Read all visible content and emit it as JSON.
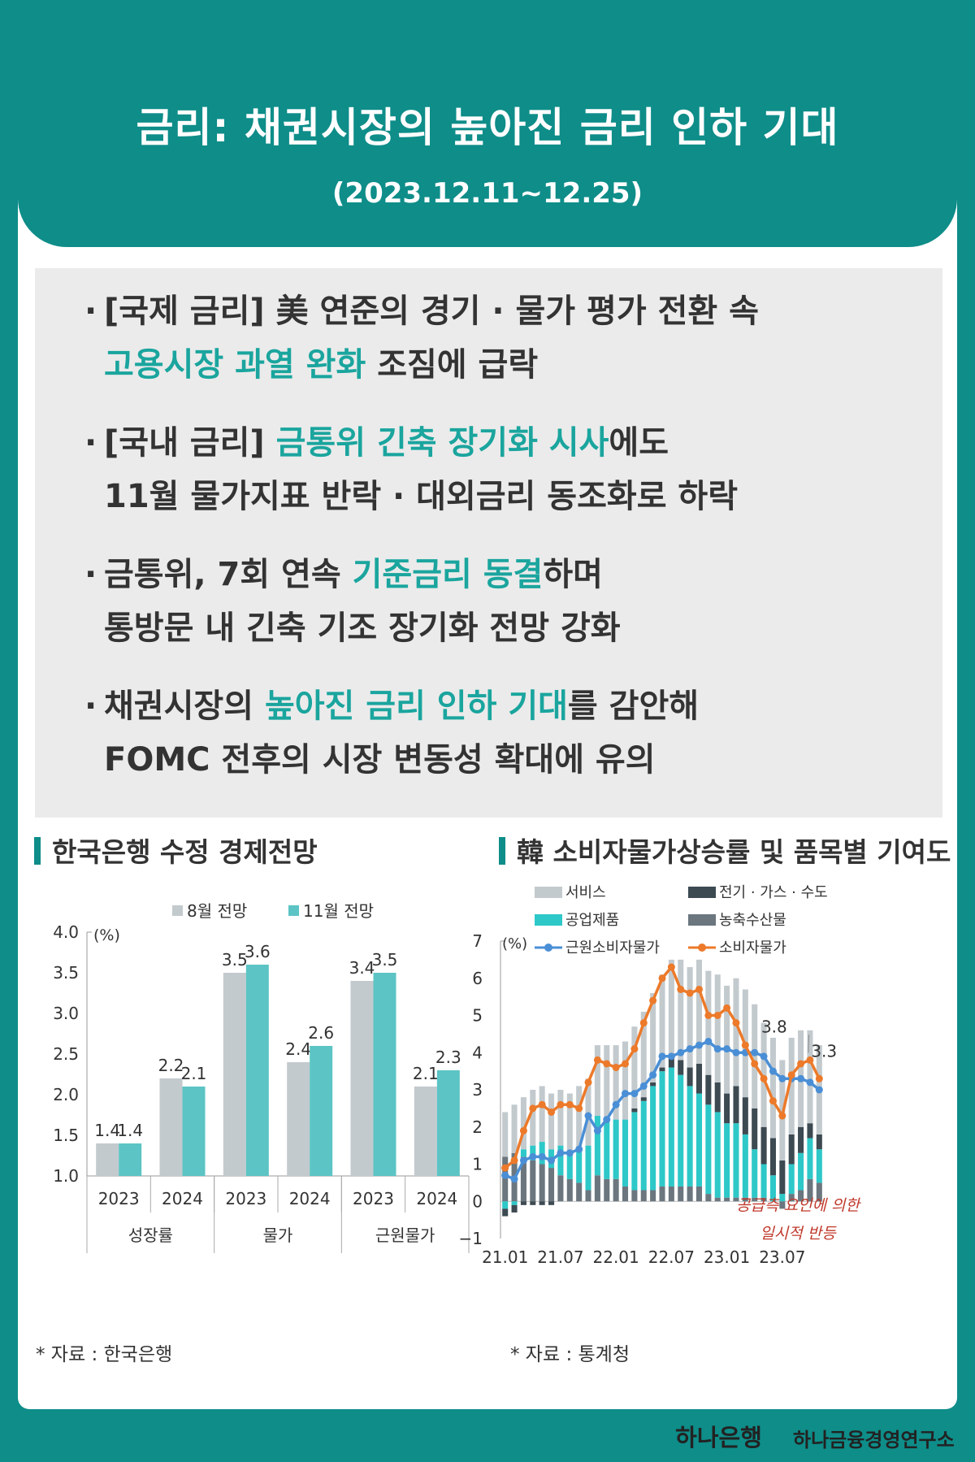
{
  "header": {
    "title": "금리: 채권시장의 높아진 금리 인하 기대",
    "period": "(2023.12.11~12.25)"
  },
  "bullets": [
    {
      "line1": [
        {
          "t": "[국제 금리] 美 연준의 경기 · 물가 평가 전환 속"
        }
      ],
      "line2": [
        {
          "t": "고용시장 과열 완화",
          "hl": true
        },
        {
          "t": " 조짐에 급락"
        }
      ]
    },
    {
      "line1": [
        {
          "t": "[국내 금리] "
        },
        {
          "t": "금통위 긴축 장기화 시사",
          "hl": true
        },
        {
          "t": "에도"
        }
      ],
      "line2": [
        {
          "t": "11월 물가지표 반락 · 대외금리 동조화로 하락"
        }
      ]
    },
    {
      "line1": [
        {
          "t": "금통위, 7회 연속 "
        },
        {
          "t": "기준금리 동결",
          "hl": true
        },
        {
          "t": "하며"
        }
      ],
      "line2": [
        {
          "t": "통방문 내 긴축 기조 장기화 전망 강화"
        }
      ]
    },
    {
      "line1": [
        {
          "t": "채권시장의 "
        },
        {
          "t": "높아진 금리 인하 기대",
          "hl": true
        },
        {
          "t": "를 감안해"
        }
      ],
      "line2": [
        {
          "t": "FOMC 전후의 시장 변동성 확대에 유의"
        }
      ]
    }
  ],
  "left_section": {
    "title": "한국은행 수정 경제전망",
    "source": "* 자료 : 한국은행"
  },
  "right_section": {
    "title": "韓 소비자물가상승률 및 품목별 기여도",
    "source": "* 자료 : 통계청"
  },
  "footer": {
    "bank": "하나은행",
    "institute": "하나금융경영연구소"
  },
  "colors": {
    "teal": "#0e8d89",
    "highlight": "#1aa59e",
    "bar_aug": "#c3cace",
    "bar_nov": "#5cc4c4",
    "services": "#c3cace",
    "utilities": "#3d4a52",
    "industrial": "#2ec8c8",
    "agri": "#6b767e",
    "core": "#4a8fd6",
    "cpi": "#ec7a2a",
    "annotation": "#c0392b"
  },
  "chart_data": [
    {
      "type": "bar",
      "title": "",
      "ylabel": "(%)",
      "ylim": [
        1.0,
        4.0
      ],
      "yticks": [
        "1.0",
        "1.5",
        "2.0",
        "2.5",
        "3.0",
        "3.5",
        "4.0"
      ],
      "categories": [
        "2023",
        "2024",
        "2023",
        "2024",
        "2023",
        "2024"
      ],
      "groups": [
        "성장률",
        "물가",
        "근원물가"
      ],
      "series": [
        {
          "name": "8월 전망",
          "values": [
            1.4,
            2.2,
            3.5,
            2.4,
            3.4,
            2.1
          ]
        },
        {
          "name": "11월 전망",
          "values": [
            1.4,
            2.1,
            3.6,
            2.6,
            3.5,
            2.3
          ]
        }
      ],
      "data_labels": [
        [
          "1.4",
          "2.2",
          "3.5",
          "2.4",
          "3.4",
          "2.1"
        ],
        [
          "1.4",
          "2.1",
          "3.6",
          "2.6",
          "3.5",
          "2.3"
        ]
      ],
      "legend": "top"
    },
    {
      "type": "bar",
      "stacked": true,
      "title": "",
      "ylabel": "(%)",
      "ylim": [
        -1,
        7
      ],
      "yticks": [
        "-1",
        "0",
        "1",
        "2",
        "3",
        "4",
        "5",
        "6",
        "7"
      ],
      "xtick_labels": [
        "21.01",
        "21.07",
        "22.01",
        "22.07",
        "23.01",
        "23.07"
      ],
      "months": [
        "21.01",
        "21.02",
        "21.03",
        "21.04",
        "21.05",
        "21.06",
        "21.07",
        "21.08",
        "21.09",
        "21.10",
        "21.11",
        "21.12",
        "22.01",
        "22.02",
        "22.03",
        "22.04",
        "22.05",
        "22.06",
        "22.07",
        "22.08",
        "22.09",
        "22.10",
        "22.11",
        "22.12",
        "23.01",
        "23.02",
        "23.03",
        "23.04",
        "23.05",
        "23.06",
        "23.07",
        "23.08",
        "23.09",
        "23.10",
        "23.11"
      ],
      "series": [
        {
          "name": "서비스",
          "kind": "bar",
          "values": [
            1.2,
            1.3,
            1.4,
            1.5,
            1.5,
            1.5,
            1.5,
            1.6,
            1.7,
            1.8,
            1.9,
            2.0,
            2.0,
            2.1,
            2.2,
            2.3,
            2.4,
            2.5,
            2.6,
            2.7,
            2.7,
            2.8,
            2.8,
            2.9,
            2.9,
            2.9,
            2.9,
            2.8,
            2.8,
            2.7,
            2.7,
            2.6,
            2.6,
            2.5,
            2.4
          ]
        },
        {
          "name": "공업제품",
          "kind": "bar",
          "values": [
            -0.2,
            -0.1,
            0.2,
            0.4,
            0.6,
            0.5,
            0.8,
            0.7,
            0.9,
            1.2,
            1.6,
            1.6,
            1.6,
            1.8,
            2.1,
            2.4,
            2.8,
            3.1,
            3.2,
            3.0,
            2.7,
            2.5,
            2.4,
            2.3,
            2.0,
            2.0,
            1.7,
            1.3,
            0.9,
            0.7,
            0.2,
            0.8,
            1.0,
            1.1,
            0.9
          ]
        },
        {
          "name": "전기 · 가스 · 수도",
          "kind": "bar",
          "values": [
            -0.2,
            -0.2,
            -0.1,
            -0.1,
            -0.1,
            -0.1,
            0.0,
            0.0,
            0.0,
            0.0,
            0.0,
            0.0,
            0.0,
            0.0,
            0.1,
            0.1,
            0.1,
            0.1,
            0.3,
            0.4,
            0.5,
            0.8,
            0.8,
            0.8,
            0.8,
            1.0,
            1.0,
            1.1,
            1.0,
            1.0,
            0.9,
            0.8,
            0.7,
            0.4,
            0.4
          ]
        },
        {
          "name": "농축수산물",
          "kind": "bar",
          "values": [
            1.2,
            1.3,
            1.2,
            1.1,
            1.0,
            0.9,
            0.7,
            0.6,
            0.5,
            0.3,
            0.7,
            0.6,
            0.6,
            0.4,
            0.3,
            0.3,
            0.3,
            0.4,
            0.4,
            0.4,
            0.4,
            0.4,
            0.2,
            0.1,
            0.1,
            0.1,
            0.1,
            0.1,
            0.1,
            0.0,
            -0.2,
            0.2,
            0.3,
            0.6,
            0.5
          ]
        },
        {
          "name": "근원소비자물가",
          "kind": "line",
          "values": [
            0.7,
            0.6,
            1.1,
            1.2,
            1.2,
            1.1,
            1.3,
            1.3,
            1.4,
            2.3,
            1.9,
            2.2,
            2.6,
            2.9,
            2.9,
            3.1,
            3.4,
            3.9,
            3.9,
            4.0,
            4.1,
            4.2,
            4.3,
            4.1,
            4.1,
            4.0,
            4.0,
            4.0,
            3.9,
            3.5,
            3.3,
            3.3,
            3.3,
            3.2,
            3.0
          ]
        },
        {
          "name": "소비자물가",
          "kind": "line",
          "values": [
            0.9,
            1.1,
            1.9,
            2.5,
            2.6,
            2.4,
            2.6,
            2.6,
            2.5,
            3.2,
            3.8,
            3.7,
            3.6,
            3.7,
            4.1,
            4.8,
            5.4,
            6.0,
            6.3,
            5.7,
            5.6,
            5.7,
            5.0,
            5.0,
            5.2,
            4.8,
            4.2,
            3.7,
            3.3,
            2.7,
            2.3,
            3.4,
            3.7,
            3.8,
            3.3
          ]
        }
      ],
      "data_labels": [
        {
          "month": "23.10",
          "text": "3.8"
        },
        {
          "month": "23.11",
          "text": "3.3"
        }
      ],
      "annotation": [
        "공급측 요인에 의한",
        "일시적 반등"
      ],
      "legend": "top"
    }
  ]
}
